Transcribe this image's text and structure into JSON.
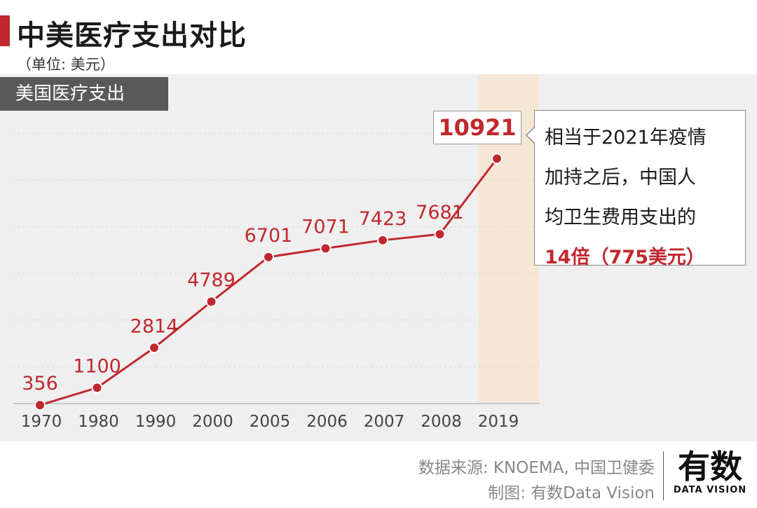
{
  "title": "中美医疗支出对比",
  "unit_label": "（单位: 美元）",
  "callout": {
    "line1": "相当于2021年疫情",
    "line2": "加持之后，中国人",
    "line3": "均卫生费用支出的",
    "highlight": "14倍（775美元）"
  },
  "footer": {
    "source": "数据来源: KNOEMA, 中国卫健委",
    "credit": "制图: 有数Data Vision"
  },
  "logo": {
    "main": "有数",
    "sub": "DATA VISION"
  },
  "colors": {
    "accent": "#c0282e",
    "label_bg": "#595959",
    "highlight_band": "#f6e6d6",
    "chart_bg": "#efefef"
  },
  "chart_data": {
    "type": "line",
    "title": "中美医疗支出对比",
    "subtitle": "（单位: 美元）",
    "categories": [
      "1970",
      "1980",
      "1990",
      "2000",
      "2005",
      "2006",
      "2007",
      "2008",
      "2019"
    ],
    "series": [
      {
        "name": "美国医疗支出",
        "values": [
          356,
          1100,
          2814,
          4789,
          6701,
          7071,
          7423,
          7681,
          10921
        ]
      }
    ],
    "highlight_category": "2019",
    "xlabel": "",
    "ylabel": "",
    "ylim": [
      0,
      12000
    ],
    "grid": "horizontal dashed"
  }
}
